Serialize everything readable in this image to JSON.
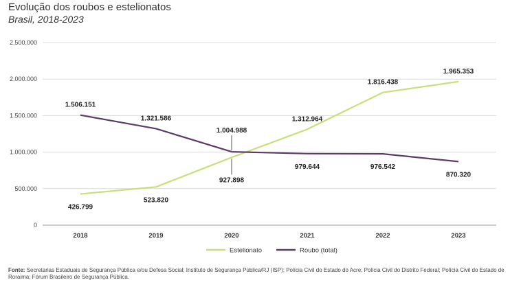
{
  "header": {
    "title": "Evolução dos roubos e estelionatos",
    "subtitle": "Brasil, 2018-2023"
  },
  "footnote": {
    "label": "Fonte:",
    "text": " Secretarias Estaduais de Segurança Pública e/ou Defesa Social; Instituto de Segurança Pública/RJ (ISP); Polícia Civil do Estado do Acre; Polícia Civil do Distrito Federal; Polícia Civil do Estado de Roraima; Fórum Brasileiro de Segurança Pública."
  },
  "colors": {
    "estelionato": "#c8df7a",
    "roubo": "#5e3a6a",
    "grid": "#d9d9d9",
    "axis": "#999999"
  },
  "chart_data": {
    "type": "line",
    "title": "Evolução dos roubos e estelionatos",
    "subtitle": "Brasil, 2018-2023",
    "xlabel": "",
    "ylabel": "",
    "categories": [
      "2018",
      "2019",
      "2020",
      "2021",
      "2022",
      "2023"
    ],
    "ylim": [
      0,
      2500000
    ],
    "yticks": [
      0,
      500000,
      1000000,
      1500000,
      2000000,
      2500000
    ],
    "ytick_labels": [
      "0",
      "500.000",
      "1.000.000",
      "1.500.000",
      "2.000.000",
      "2.500.000"
    ],
    "grid": true,
    "legend_position": "bottom-center",
    "series": [
      {
        "name": "Estelionato",
        "values": [
          426799,
          523820,
          927898,
          1312964,
          1816438,
          1965353
        ],
        "labels": [
          "426.799",
          "523.820",
          "927.898",
          "1.312.964",
          "1.816.438",
          "1.965.353"
        ],
        "label_positions": [
          "below",
          "below",
          "below",
          "above",
          "above",
          "above"
        ]
      },
      {
        "name": "Roubo (total)",
        "values": [
          1506151,
          1321586,
          1004988,
          979644,
          976542,
          870320
        ],
        "labels": [
          "1.506.151",
          "1.321.586",
          "1.004.988",
          "979.644",
          "976.542",
          "870.320"
        ],
        "label_positions": [
          "above",
          "above",
          "above",
          "below",
          "below",
          "below"
        ]
      }
    ]
  }
}
